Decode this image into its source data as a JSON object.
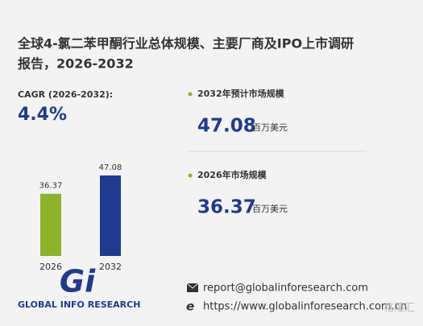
{
  "title_lines": [
    "全球4-氯二苯甲酮行业总体规模、主要厂商及IPO上市调研",
    "报告，2026-2032"
  ],
  "cagr": {
    "label": "CAGR (2026-2032):",
    "value": "4.4%"
  },
  "chart_data": {
    "type": "bar",
    "categories": [
      "2026",
      "2032"
    ],
    "values": [
      36.37,
      47.08
    ],
    "colors": [
      "#8db32a",
      "#1f3b8f"
    ],
    "ylim": [
      0,
      48
    ]
  },
  "stats": [
    {
      "label": "2032年预计市场规模",
      "unit": "百万美元"
    },
    {
      "label": "2026年市场规模",
      "unit": "百万美元"
    }
  ],
  "contact": {
    "email": "report@globalinforesearch.com",
    "website": "https://www.globalinforesearch.com.cn"
  },
  "logo": {
    "mark": "Gi",
    "text": "GLOBAL INFO RESEARCH"
  },
  "watermark": "格隆汇"
}
